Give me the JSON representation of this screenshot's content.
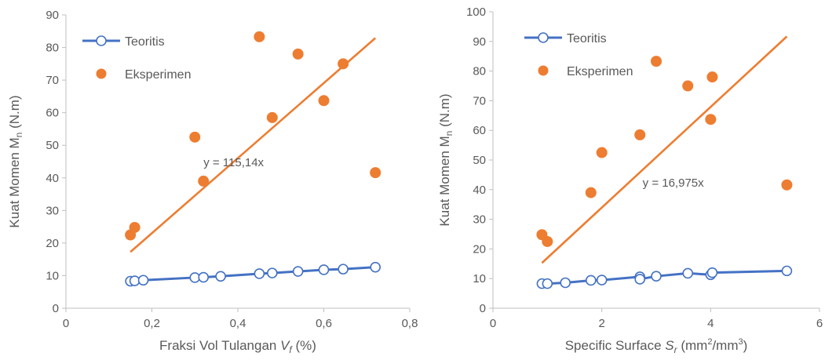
{
  "colors": {
    "teoritis": "#4472C4",
    "eksperimen": "#ED7D31",
    "axis": "#BFBFBF",
    "text": "#595959"
  },
  "chart_data": [
    {
      "type": "scatter",
      "xlabel_main": "Fraksi Vol Tulangan ",
      "xlabel_var": "V",
      "xlabel_sub": "f",
      "xlabel_unit": " (%)",
      "ylabel_main": "Kuat Momen M",
      "ylabel_sub": "n",
      "ylabel_unit": " (N.m)",
      "xlim": [
        0,
        0.8
      ],
      "ylim": [
        0,
        90
      ],
      "xticks": [
        0,
        0.2,
        0.4,
        0.6,
        0.8
      ],
      "xtick_labels": [
        "0",
        "0,2",
        "0,4",
        "0,6",
        "0,8"
      ],
      "yticks": [
        0,
        10,
        20,
        30,
        40,
        50,
        60,
        70,
        80,
        90
      ],
      "ytick_labels": [
        "0",
        "10",
        "20",
        "30",
        "40",
        "50",
        "60",
        "70",
        "80",
        "90"
      ],
      "legend_position": "top-left",
      "series": [
        {
          "name": "Teoritis",
          "style": "line-open-markers",
          "x": [
            0.15,
            0.16,
            0.18,
            0.3,
            0.32,
            0.36,
            0.45,
            0.48,
            0.54,
            0.6,
            0.645,
            0.72
          ],
          "y": [
            8.3,
            8.4,
            8.6,
            9.4,
            9.5,
            9.8,
            10.6,
            10.8,
            11.3,
            11.8,
            12.0,
            12.6
          ]
        },
        {
          "name": "Eksperimen",
          "style": "filled-markers",
          "x": [
            0.15,
            0.16,
            0.3,
            0.32,
            0.45,
            0.48,
            0.54,
            0.6,
            0.645,
            0.72
          ],
          "y": [
            22.5,
            24.8,
            52.5,
            39.0,
            83.3,
            58.5,
            78.0,
            63.7,
            75.0,
            41.6
          ]
        }
      ],
      "trendline": {
        "series": "Eksperimen",
        "slope": 115.14,
        "x_range": [
          0.15,
          0.72
        ],
        "equation": "y = 115,14x",
        "label_anchor": [
          0.32,
          43.5
        ]
      }
    },
    {
      "type": "scatter",
      "xlabel_main": "Specific Surface ",
      "xlabel_var": "S",
      "xlabel_sub": "r",
      "xlabel_unit_a": " (mm",
      "xlabel_sup1": "2",
      "xlabel_unit_b": "/mm",
      "xlabel_sup2": "3",
      "xlabel_unit_c": ")",
      "ylabel_main": "Kuat Momen M",
      "ylabel_sub": "n",
      "ylabel_unit": " (N.m)",
      "xlim": [
        0,
        6
      ],
      "ylim": [
        0,
        100
      ],
      "xticks": [
        0,
        2,
        4,
        6
      ],
      "xtick_labels": [
        "0",
        "2",
        "4",
        "6"
      ],
      "yticks": [
        0,
        10,
        20,
        30,
        40,
        50,
        60,
        70,
        80,
        90,
        100
      ],
      "ytick_labels": [
        "0",
        "10",
        "20",
        "30",
        "40",
        "50",
        "60",
        "70",
        "80",
        "90",
        "100"
      ],
      "legend_position": "top-left",
      "series": [
        {
          "name": "Teoritis",
          "style": "line-open-markers",
          "x": [
            0.9,
            1.0,
            1.33,
            1.8,
            2.0,
            2.7,
            2.7,
            3.0,
            3.58,
            4.0,
            4.03,
            5.4
          ],
          "y": [
            8.3,
            8.3,
            8.6,
            9.4,
            9.5,
            10.6,
            9.8,
            10.8,
            11.8,
            11.3,
            12.0,
            12.6
          ]
        },
        {
          "name": "Eksperimen",
          "style": "filled-markers",
          "x": [
            0.9,
            1.0,
            1.8,
            2.0,
            2.7,
            3.0,
            3.58,
            4.0,
            4.03,
            5.4
          ],
          "y": [
            24.8,
            22.5,
            39.0,
            52.5,
            58.5,
            83.3,
            75.0,
            63.7,
            78.0,
            41.6
          ]
        }
      ],
      "trendline": {
        "series": "Eksperimen",
        "slope": 16.975,
        "x_range": [
          0.9,
          5.4
        ],
        "equation": "y = 16,975x",
        "label_anchor": [
          2.75,
          41
        ]
      }
    }
  ]
}
